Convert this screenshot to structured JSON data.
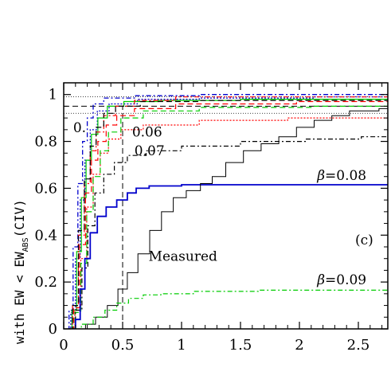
{
  "chart_data": {
    "type": "line",
    "title": "",
    "xlabel": "",
    "ylabel": "with EW < EW",
    "ylabel_sub": "ABS",
    "ylabel_tail": "(CIV)",
    "xlim": [
      0,
      2.75
    ],
    "ylim": [
      0,
      1.05
    ],
    "x_ticks": [
      "0",
      "0.5",
      "1",
      "1.5",
      "2",
      "2.5"
    ],
    "x_tick_values": [
      0,
      0.5,
      1,
      1.5,
      2,
      2.5
    ],
    "y_ticks": [
      "0",
      "0.2",
      "0.4",
      "0.6",
      "0.8",
      "1"
    ],
    "y_tick_values": [
      0,
      0.2,
      0.4,
      0.6,
      0.8,
      1
    ],
    "panel_label": "(c)",
    "reference_lines": {
      "vertical_dashed_x": 0.5,
      "horizontal_dashed_y": 0.95,
      "horizontal_dotted_y": [
        0.92,
        0.99
      ]
    },
    "annotations": [
      {
        "text": "0.",
        "x": 0.08,
        "y": 0.84
      },
      {
        "text": "0.06",
        "x": 0.58,
        "y": 0.82
      },
      {
        "text": "0.07",
        "x": 0.6,
        "y": 0.74
      },
      {
        "text": "β=0.08",
        "x": 2.15,
        "y": 0.635
      },
      {
        "text": "Measured",
        "x": 0.72,
        "y": 0.29
      },
      {
        "text": "β=0.09",
        "x": 2.15,
        "y": 0.19
      }
    ],
    "series": [
      {
        "color": "#0000cc",
        "dash": "6,3,2,3",
        "width": 1.3,
        "points": [
          [
            0.03,
            0
          ],
          [
            0.06,
            0.08
          ],
          [
            0.1,
            0.35
          ],
          [
            0.14,
            0.62
          ],
          [
            0.18,
            0.8
          ],
          [
            0.22,
            0.9
          ],
          [
            0.28,
            0.96
          ],
          [
            0.4,
            0.985
          ],
          [
            0.8,
            0.995
          ],
          [
            1.5,
            1
          ],
          [
            2.75,
            1
          ]
        ]
      },
      {
        "color": "#0000cc",
        "dash": "2,2",
        "width": 1.2,
        "points": [
          [
            0.04,
            0
          ],
          [
            0.08,
            0.07
          ],
          [
            0.12,
            0.3
          ],
          [
            0.16,
            0.55
          ],
          [
            0.2,
            0.72
          ],
          [
            0.25,
            0.85
          ],
          [
            0.32,
            0.93
          ],
          [
            0.45,
            0.96
          ],
          [
            0.8,
            0.98
          ],
          [
            1.5,
            0.985
          ],
          [
            2.75,
            0.99
          ]
        ]
      },
      {
        "color": "#00cc00",
        "dash": "",
        "width": 1.2,
        "points": [
          [
            0.05,
            0
          ],
          [
            0.09,
            0.08
          ],
          [
            0.13,
            0.33
          ],
          [
            0.17,
            0.56
          ],
          [
            0.21,
            0.72
          ],
          [
            0.26,
            0.83
          ],
          [
            0.32,
            0.9
          ],
          [
            0.42,
            0.95
          ],
          [
            0.6,
            0.97
          ],
          [
            1.0,
            0.975
          ],
          [
            2.0,
            0.98
          ],
          [
            2.75,
            0.98
          ]
        ]
      },
      {
        "color": "#ff0000",
        "dash": "6,3,2,3",
        "width": 1.2,
        "points": [
          [
            0.05,
            0
          ],
          [
            0.1,
            0.1
          ],
          [
            0.15,
            0.4
          ],
          [
            0.2,
            0.62
          ],
          [
            0.25,
            0.76
          ],
          [
            0.3,
            0.84
          ],
          [
            0.38,
            0.91
          ],
          [
            0.5,
            0.95
          ],
          [
            0.7,
            0.975
          ],
          [
            1.2,
            0.99
          ],
          [
            2.75,
            0.99
          ]
        ]
      },
      {
        "color": "#ff0000",
        "dash": "7,4",
        "width": 1.2,
        "points": [
          [
            0.06,
            0
          ],
          [
            0.11,
            0.09
          ],
          [
            0.16,
            0.36
          ],
          [
            0.21,
            0.58
          ],
          [
            0.26,
            0.72
          ],
          [
            0.32,
            0.8
          ],
          [
            0.4,
            0.87
          ],
          [
            0.5,
            0.91
          ],
          [
            0.7,
            0.94
          ],
          [
            1.2,
            0.96
          ],
          [
            2.75,
            0.97
          ]
        ]
      },
      {
        "color": "#ff0000",
        "dash": "2,2",
        "width": 1.2,
        "points": [
          [
            0.07,
            0
          ],
          [
            0.12,
            0.08
          ],
          [
            0.17,
            0.3
          ],
          [
            0.22,
            0.52
          ],
          [
            0.28,
            0.66
          ],
          [
            0.34,
            0.75
          ],
          [
            0.42,
            0.81
          ],
          [
            0.55,
            0.85
          ],
          [
            0.8,
            0.87
          ],
          [
            1.5,
            0.89
          ],
          [
            2.3,
            0.9
          ],
          [
            2.75,
            0.9
          ]
        ]
      },
      {
        "color": "#00cc00",
        "dash": "7,4",
        "width": 1.2,
        "points": [
          [
            0.07,
            0
          ],
          [
            0.12,
            0.07
          ],
          [
            0.17,
            0.28
          ],
          [
            0.22,
            0.5
          ],
          [
            0.28,
            0.65
          ],
          [
            0.34,
            0.76
          ],
          [
            0.42,
            0.84
          ],
          [
            0.55,
            0.9
          ],
          [
            0.8,
            0.93
          ],
          [
            1.5,
            0.945
          ],
          [
            2.75,
            0.95
          ]
        ]
      },
      {
        "color": "#000000",
        "dash": "7,4",
        "width": 1.2,
        "points": [
          [
            0.05,
            0
          ],
          [
            0.1,
            0.1
          ],
          [
            0.15,
            0.42
          ],
          [
            0.2,
            0.64
          ],
          [
            0.25,
            0.78
          ],
          [
            0.3,
            0.86
          ],
          [
            0.38,
            0.92
          ],
          [
            0.5,
            0.95
          ],
          [
            0.8,
            0.97
          ],
          [
            1.5,
            0.975
          ],
          [
            2.75,
            0.975
          ]
        ]
      },
      {
        "color": "#000000",
        "dash": "6,3,2,3",
        "width": 1.2,
        "points": [
          [
            0.07,
            0
          ],
          [
            0.13,
            0.08
          ],
          [
            0.18,
            0.26
          ],
          [
            0.23,
            0.44
          ],
          [
            0.3,
            0.58
          ],
          [
            0.38,
            0.66
          ],
          [
            0.48,
            0.71
          ],
          [
            0.6,
            0.74
          ],
          [
            0.8,
            0.76
          ],
          [
            1.2,
            0.78
          ],
          [
            1.8,
            0.8
          ],
          [
            2.3,
            0.81
          ],
          [
            2.75,
            0.82
          ]
        ]
      },
      {
        "color": "#0000cc",
        "dash": "",
        "width": 1.8,
        "points": [
          [
            0.08,
            0
          ],
          [
            0.12,
            0.04
          ],
          [
            0.16,
            0.17
          ],
          [
            0.2,
            0.3
          ],
          [
            0.25,
            0.41
          ],
          [
            0.32,
            0.48
          ],
          [
            0.4,
            0.52
          ],
          [
            0.5,
            0.55
          ],
          [
            0.58,
            0.58
          ],
          [
            0.65,
            0.6
          ],
          [
            0.8,
            0.61
          ],
          [
            1.2,
            0.615
          ],
          [
            2.75,
            0.615
          ]
        ]
      },
      {
        "color": "#000000",
        "dash": "",
        "width": 1.0,
        "points": [
          [
            0.15,
            0
          ],
          [
            0.22,
            0.02
          ],
          [
            0.32,
            0.05
          ],
          [
            0.42,
            0.1
          ],
          [
            0.5,
            0.17
          ],
          [
            0.58,
            0.24
          ],
          [
            0.68,
            0.32
          ],
          [
            0.78,
            0.42
          ],
          [
            0.88,
            0.5
          ],
          [
            0.98,
            0.56
          ],
          [
            1.1,
            0.59
          ],
          [
            1.22,
            0.62
          ],
          [
            1.3,
            0.65
          ],
          [
            1.45,
            0.71
          ],
          [
            1.6,
            0.76
          ],
          [
            1.75,
            0.79
          ],
          [
            1.9,
            0.82
          ],
          [
            2.05,
            0.86
          ],
          [
            2.2,
            0.89
          ],
          [
            2.35,
            0.91
          ],
          [
            2.5,
            0.93
          ],
          [
            2.6,
            0.93
          ],
          [
            2.75,
            0.94
          ]
        ]
      },
      {
        "color": "#00cc00",
        "dash": "6,3,2,3",
        "width": 1.2,
        "points": [
          [
            0.1,
            0
          ],
          [
            0.2,
            0.02
          ],
          [
            0.3,
            0.05
          ],
          [
            0.4,
            0.08
          ],
          [
            0.5,
            0.11
          ],
          [
            0.6,
            0.13
          ],
          [
            0.75,
            0.145
          ],
          [
            0.9,
            0.15
          ],
          [
            1.3,
            0.16
          ],
          [
            2.0,
            0.165
          ],
          [
            2.75,
            0.165
          ]
        ]
      }
    ]
  }
}
